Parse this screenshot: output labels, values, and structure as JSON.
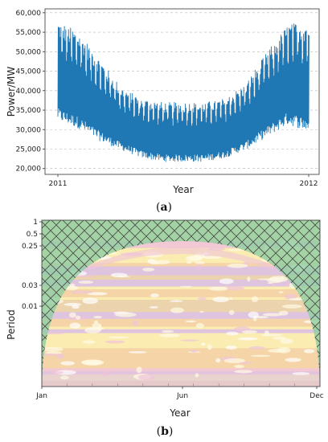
{
  "chart_data": [
    {
      "type": "line",
      "panel": "a",
      "xlabel": "Year",
      "ylabel": "Power/MW",
      "x_tick_labels": [
        "2011",
        "2012"
      ],
      "y_tick_labels": [
        "20,000",
        "25,000",
        "30,000",
        "35,000",
        "40,000",
        "45,000",
        "50,000",
        "55,000",
        "60,000"
      ],
      "y_ticks": [
        20000,
        25000,
        30000,
        35000,
        40000,
        45000,
        50000,
        55000,
        60000
      ],
      "ylim": [
        18500,
        61000
      ],
      "xlim": [
        "2011-01-01",
        "2012-01-01"
      ],
      "grid": true,
      "line_color": "#1f77b4",
      "series": [
        {
          "x_months": [
            0,
            1,
            2,
            3,
            4,
            5,
            6,
            7,
            8,
            9,
            10,
            11,
            12
          ],
          "daily_max": [
            58000,
            55000,
            48000,
            41000,
            38000,
            37000,
            37000,
            37000,
            38000,
            42000,
            50000,
            57000,
            58000
          ],
          "daily_min": [
            31000,
            29000,
            26000,
            24000,
            22000,
            21000,
            21000,
            21000,
            22000,
            24000,
            27000,
            30000,
            28000
          ]
        }
      ]
    },
    {
      "type": "heatmap",
      "panel": "b",
      "xlabel": "Year",
      "ylabel": "Period",
      "x_tick_labels": [
        "Jan",
        "Jun",
        "Dec"
      ],
      "y_tick_labels": [
        "1",
        "0.5",
        "0.25",
        "0.03",
        "0.01"
      ],
      "y_ticks": [
        1,
        0.5,
        0.25,
        0.03,
        0.01
      ],
      "y_scale": "log",
      "colors": {
        "hatch_region": "#8fcea0",
        "band_yellow": "#fbeeb1",
        "band_orange": "#f5d3a6",
        "band_pink": "#f0c4d8",
        "band_tan": "#e9d2ab",
        "band_lavender": "#d9bfe6"
      }
    }
  ],
  "labels": {
    "panel_a": "a",
    "panel_b": "b"
  }
}
